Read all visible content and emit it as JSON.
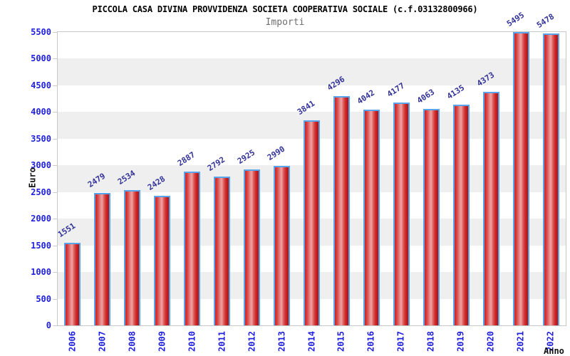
{
  "header": {
    "title": "PICCOLA CASA DIVINA PROVVIDENZA SOCIETA COOPERATIVA SOCIALE (c.f.03132800966)",
    "subtitle": "Importi"
  },
  "chart_data": {
    "type": "bar",
    "title": "PICCOLA CASA DIVINA PROVVIDENZA SOCIETA COOPERATIVA SOCIALE (c.f.03132800966)",
    "subtitle": "Importi",
    "xlabel": "Anno",
    "ylabel": "Euro",
    "categories": [
      "2006",
      "2007",
      "2008",
      "2009",
      "2010",
      "2011",
      "2012",
      "2013",
      "2014",
      "2015",
      "2016",
      "2017",
      "2018",
      "2019",
      "2020",
      "2021",
      "2022"
    ],
    "values": [
      1551,
      2479,
      2534,
      2428,
      2887,
      2792,
      2925,
      2990,
      3841,
      4296,
      4042,
      4177,
      4063,
      4135,
      4373,
      5495,
      5478
    ],
    "ylim": [
      0,
      5500
    ],
    "ytick_step": 500,
    "grid": "alternating horizontal gray/white bands every 500",
    "legend_position": "none",
    "colors": {
      "bar_fill_edge": "#d02020",
      "bar_fill_highlight": "#efa4a4",
      "bar_fill_dark_edge": "#b01414",
      "bar_border": "#58a4ec",
      "axis_tick_label": "#2020dd",
      "value_label": "#333399",
      "band_gray": "#efefef",
      "title_color": "#000000",
      "subtitle_color": "#6e6e6e"
    }
  }
}
